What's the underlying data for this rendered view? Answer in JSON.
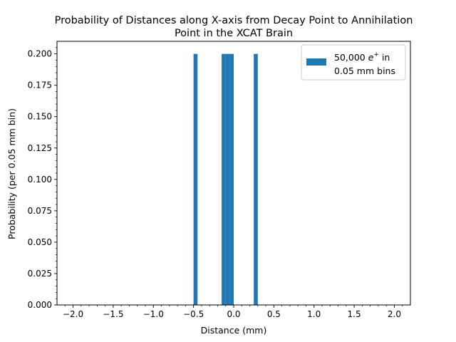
{
  "chart_data": {
    "type": "bar",
    "title_lines": [
      "Probability of Distances along X-axis from Decay Point to Annihilation",
      "Point in the XCAT Brain"
    ],
    "xlabel": "Distance (mm)",
    "ylabel": "Probability (per 0.05 mm bin)",
    "xlim": [
      -2.2,
      2.2
    ],
    "ylim": [
      0,
      0.21
    ],
    "xticks": [
      -2.0,
      -1.5,
      -1.0,
      -0.5,
      0.0,
      0.5,
      1.0,
      1.5,
      2.0
    ],
    "xtick_labels": [
      "−2.0",
      "−1.5",
      "−1.0",
      "−0.5",
      "0.0",
      "0.5",
      "1.0",
      "1.5",
      "2.0"
    ],
    "yticks": [
      0.0,
      0.025,
      0.05,
      0.075,
      0.1,
      0.125,
      0.15,
      0.175,
      0.2
    ],
    "ytick_labels": [
      "0.000",
      "0.025",
      "0.050",
      "0.075",
      "0.100",
      "0.125",
      "0.150",
      "0.175",
      "0.200"
    ],
    "bin_width": 0.05,
    "bars": [
      {
        "x0": -0.5,
        "x1": -0.45,
        "value": 0.2
      },
      {
        "x0": -0.15,
        "x1": -0.1,
        "value": 0.2
      },
      {
        "x0": -0.1,
        "x1": -0.05,
        "value": 0.2
      },
      {
        "x0": -0.05,
        "x1": 0.0,
        "value": 0.2
      },
      {
        "x0": 0.25,
        "x1": 0.3,
        "value": 0.2
      }
    ],
    "bar_color": "#1f77b4",
    "grid": false,
    "legend": {
      "placement": "top-right",
      "line1_prefix": "50,000 ",
      "line1_symbol": "e",
      "line1_sup": "+",
      "line1_suffix": " in",
      "line2": "0.05 mm bins"
    }
  }
}
